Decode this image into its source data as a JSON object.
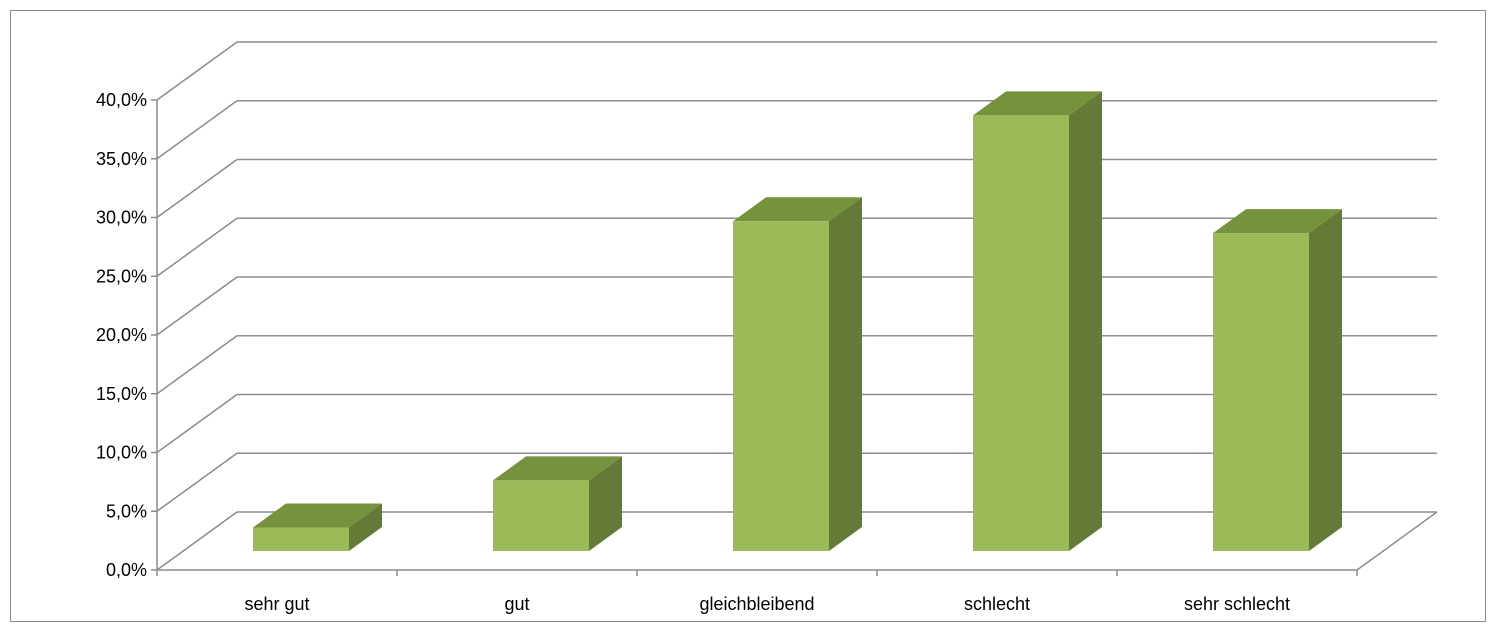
{
  "chart_data": {
    "type": "bar",
    "title": "",
    "xlabel": "",
    "ylabel": "",
    "categories": [
      "sehr gut",
      "gut",
      "gleichbleibend",
      "schlecht",
      "sehr schlecht"
    ],
    "values": [
      2.0,
      6.0,
      28.0,
      37.0,
      27.0
    ],
    "value_unit": "%",
    "ylim": [
      0,
      40
    ],
    "yticks": [
      "0,0%",
      "5,0%",
      "10,0%",
      "15,0%",
      "20,0%",
      "25,0%",
      "30,0%",
      "35,0%",
      "40,0%"
    ],
    "grid": true,
    "style": "3d-column",
    "colors": {
      "front": "#9bbb59",
      "top": "#76923c",
      "side": "#657a37",
      "grid": "#8c8c8c"
    }
  }
}
